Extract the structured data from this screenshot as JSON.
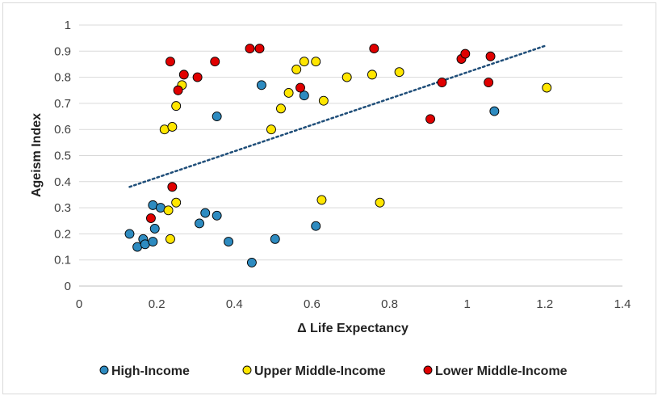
{
  "chart_data": {
    "type": "scatter",
    "title": "",
    "xlabel": "Δ Life Expectancy",
    "ylabel": "Ageism Index",
    "xlim": [
      0,
      1.4
    ],
    "ylim": [
      0,
      1
    ],
    "x_ticks": [
      0,
      0.2,
      0.4,
      0.6,
      0.8,
      1,
      1.2,
      1.4
    ],
    "x_tick_labels": [
      "0",
      "0.2",
      "0.4",
      "0.6",
      "0.8",
      "1",
      "1.2",
      "1.4"
    ],
    "y_ticks": [
      0,
      0.1,
      0.2,
      0.3,
      0.4,
      0.5,
      0.6,
      0.7,
      0.8,
      0.9,
      1
    ],
    "y_tick_labels": [
      "0",
      "0.1",
      "0.2",
      "0.3",
      "0.4",
      "0.5",
      "0.6",
      "0.7",
      "0.8",
      "0.9",
      "1"
    ],
    "grid": "horizontal",
    "legend_position": "bottom",
    "series": [
      {
        "name": "High-Income",
        "color": "#2E8BC0",
        "points": [
          [
            0.13,
            0.2
          ],
          [
            0.15,
            0.15
          ],
          [
            0.165,
            0.18
          ],
          [
            0.17,
            0.16
          ],
          [
            0.19,
            0.17
          ],
          [
            0.19,
            0.31
          ],
          [
            0.195,
            0.22
          ],
          [
            0.21,
            0.3
          ],
          [
            0.31,
            0.24
          ],
          [
            0.325,
            0.28
          ],
          [
            0.355,
            0.27
          ],
          [
            0.355,
            0.65
          ],
          [
            0.385,
            0.17
          ],
          [
            0.445,
            0.09
          ],
          [
            0.47,
            0.77
          ],
          [
            0.505,
            0.18
          ],
          [
            0.58,
            0.73
          ],
          [
            0.61,
            0.23
          ],
          [
            1.07,
            0.67
          ]
        ]
      },
      {
        "name": "Upper Middle-Income",
        "color": "#FFE600",
        "points": [
          [
            0.22,
            0.6
          ],
          [
            0.23,
            0.29
          ],
          [
            0.235,
            0.18
          ],
          [
            0.24,
            0.61
          ],
          [
            0.25,
            0.69
          ],
          [
            0.25,
            0.32
          ],
          [
            0.265,
            0.77
          ],
          [
            0.495,
            0.6
          ],
          [
            0.52,
            0.68
          ],
          [
            0.54,
            0.74
          ],
          [
            0.56,
            0.83
          ],
          [
            0.58,
            0.86
          ],
          [
            0.61,
            0.86
          ],
          [
            0.625,
            0.33
          ],
          [
            0.63,
            0.71
          ],
          [
            0.69,
            0.8
          ],
          [
            0.755,
            0.81
          ],
          [
            0.775,
            0.32
          ],
          [
            0.825,
            0.82
          ],
          [
            1.205,
            0.76
          ]
        ]
      },
      {
        "name": "Lower Middle-Income",
        "color": "#E00000",
        "points": [
          [
            0.185,
            0.26
          ],
          [
            0.235,
            0.86
          ],
          [
            0.24,
            0.38
          ],
          [
            0.255,
            0.75
          ],
          [
            0.27,
            0.81
          ],
          [
            0.305,
            0.8
          ],
          [
            0.35,
            0.86
          ],
          [
            0.44,
            0.91
          ],
          [
            0.465,
            0.91
          ],
          [
            0.57,
            0.76
          ],
          [
            0.76,
            0.91
          ],
          [
            0.905,
            0.64
          ],
          [
            0.935,
            0.78
          ],
          [
            0.985,
            0.87
          ],
          [
            0.995,
            0.89
          ],
          [
            1.055,
            0.78
          ],
          [
            1.06,
            0.88
          ]
        ]
      }
    ],
    "trendline": {
      "type": "linear",
      "color": "#1F4E79",
      "style": "dotted",
      "x": [
        0.13,
        1.2
      ],
      "y": [
        0.38,
        0.92
      ]
    }
  }
}
